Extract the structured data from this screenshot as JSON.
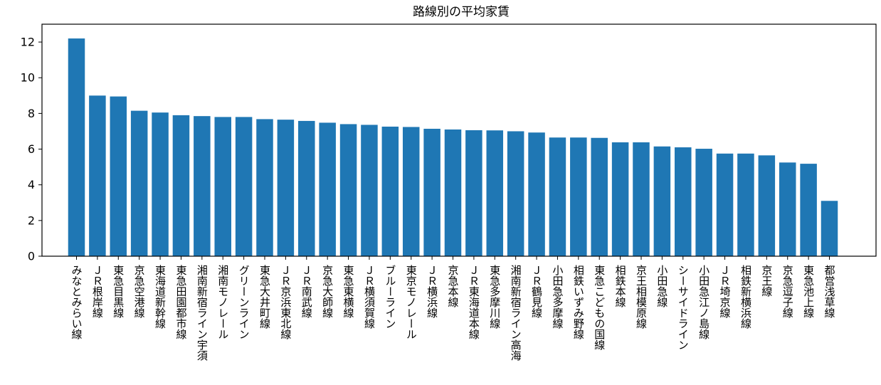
{
  "chart_data": {
    "type": "bar",
    "title": "路線別の平均家賃",
    "xlabel": "",
    "ylabel": "",
    "ylim": [
      0,
      13
    ],
    "yticks": [
      0,
      2,
      4,
      6,
      8,
      10,
      12
    ],
    "color": "#1f77b4",
    "grid": false,
    "categories": [
      "みなとみらい線",
      "ＪＲ根岸線",
      "東急目黒線",
      "京急空港線",
      "東海道新幹線",
      "東急田園都市線",
      "湘南新宿ライン宇須",
      "湘南モノレール",
      "グリーンライン",
      "東急大井町線",
      "ＪＲ京浜東北線",
      "ＪＲ南武線",
      "京急大師線",
      "東急東横線",
      "ＪＲ横須賀線",
      "ブルーライン",
      "東京モノレール",
      "ＪＲ横浜線",
      "京急本線",
      "ＪＲ東海道本線",
      "東急多摩川線",
      "湘南新宿ライン高海",
      "ＪＲ鶴見線",
      "小田急多摩線",
      "相鉄いずみ野線",
      "東急こどもの国線",
      "相鉄本線",
      "京王相模原線",
      "小田急線",
      "シーサイドライン",
      "小田急江ノ島線",
      "ＪＲ埼京線",
      "相鉄新横浜線",
      "京王線",
      "京急逗子線",
      "東急池上線",
      "都営浅草線"
    ],
    "values": [
      12.2,
      9.0,
      8.95,
      8.15,
      8.05,
      7.9,
      7.85,
      7.8,
      7.8,
      7.68,
      7.65,
      7.58,
      7.48,
      7.4,
      7.36,
      7.26,
      7.24,
      7.14,
      7.1,
      7.06,
      7.05,
      7.0,
      6.93,
      6.65,
      6.65,
      6.63,
      6.38,
      6.38,
      6.15,
      6.1,
      6.02,
      5.75,
      5.75,
      5.65,
      5.25,
      5.18,
      3.1
    ]
  }
}
